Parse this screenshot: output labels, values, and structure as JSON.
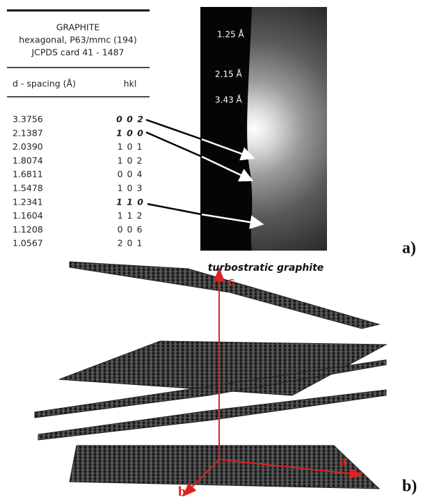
{
  "table": {
    "title": [
      "GRAPHITE",
      "hexagonal, P63/mmc (194)",
      "JCPDS card 41 - 1487"
    ],
    "columns": [
      "d - spacing (Å)",
      "hkl"
    ],
    "rows": [
      [
        "3.3756",
        "0 0 2"
      ],
      [
        "2.1387",
        "1 0 0"
      ],
      [
        "2.0390",
        "1 0 1"
      ],
      [
        "1.8074",
        "1 0 2"
      ],
      [
        "1.6811",
        "0 0 4"
      ],
      [
        "1.5478",
        "1 0 3"
      ],
      [
        "1.2341",
        "1 1 0"
      ],
      [
        "1.1604",
        "1 1 2"
      ],
      [
        "1.1208",
        "0 0 6"
      ],
      [
        "1.0567",
        "2 0 1"
      ]
    ]
  },
  "diffraction": {
    "rings": [
      "1.25 Å",
      "2.15 Å",
      "3.43 Å"
    ],
    "caption": "turbostratic graphite"
  },
  "panels": [
    "a)",
    "b)"
  ],
  "axes": {
    "c": "c",
    "a": "a",
    "b": "b"
  }
}
